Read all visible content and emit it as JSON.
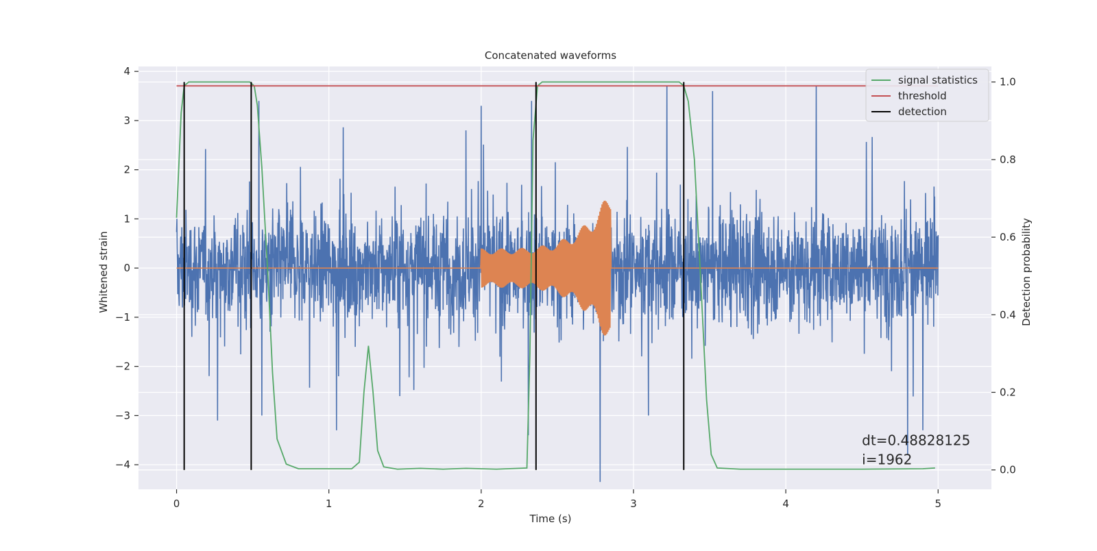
{
  "chart_data": {
    "type": "line",
    "title": "Concatenated waveforms",
    "xlabel": "Time (s)",
    "ylabel": "Whitened strain",
    "ylabel_right": "Detection probability",
    "xlim": [
      -0.25,
      5.35
    ],
    "ylim": [
      -4.5,
      4.1
    ],
    "ylim_right": [
      -0.05,
      1.04
    ],
    "xticks": [
      0,
      1,
      2,
      3,
      4,
      5
    ],
    "yticks": [
      -4,
      -3,
      -2,
      -1,
      0,
      1,
      2,
      3,
      4
    ],
    "yticks_right": [
      0.0,
      0.2,
      0.4,
      0.6,
      0.8,
      1.0
    ],
    "grid": true,
    "legend_position": "top-right",
    "colors": {
      "background": "#eaeaf2",
      "grid": "#ffffff",
      "strain": "#4c72b0",
      "waveform": "#dd8452",
      "signal_statistics": "#55a868",
      "threshold": "#c44e52",
      "detection": "#000000",
      "text": "#262626"
    },
    "strain": {
      "x_range": [
        0,
        5
      ],
      "typical_amplitude": 1.1,
      "peaks": [
        {
          "x": 0.54,
          "y": 3.4
        },
        {
          "x": 0.56,
          "y": -3.0
        },
        {
          "x": 1.05,
          "y": -3.3
        },
        {
          "x": 1.9,
          "y": 2.8
        },
        {
          "x": 2.0,
          "y": 3.3
        },
        {
          "x": 2.31,
          "y": -3.4
        },
        {
          "x": 2.33,
          "y": 3.4
        },
        {
          "x": 2.78,
          "y": -4.35
        },
        {
          "x": 3.22,
          "y": 3.7
        },
        {
          "x": 3.52,
          "y": 3.6
        },
        {
          "x": 4.2,
          "y": 3.7
        },
        {
          "x": 4.8,
          "y": -3.8
        },
        {
          "x": 4.9,
          "y": -3.3
        },
        {
          "x": 0.27,
          "y": -3.1
        }
      ]
    },
    "waveform": {
      "start": 2.0,
      "end": 2.85,
      "start_amplitude": 0.4,
      "peak_amplitude": 1.6,
      "elsewhere": 0
    },
    "series": [
      {
        "name": "signal statistics",
        "x": [
          0,
          0.03,
          0.05,
          0.08,
          0.48,
          0.51,
          0.53,
          0.56,
          0.6,
          0.63,
          0.66,
          0.72,
          0.8,
          1.15,
          1.2,
          1.23,
          1.26,
          1.29,
          1.32,
          1.36,
          1.45,
          1.6,
          1.75,
          1.9,
          2.1,
          2.3,
          2.32,
          2.34,
          2.37,
          2.4,
          3.3,
          3.33,
          3.36,
          3.4,
          3.44,
          3.48,
          3.51,
          3.55,
          3.7,
          4.5,
          4.9,
          4.98
        ],
        "y": [
          0.65,
          0.92,
          0.99,
          1.0,
          1.0,
          0.99,
          0.94,
          0.78,
          0.5,
          0.25,
          0.08,
          0.015,
          0.003,
          0.003,
          0.02,
          0.2,
          0.32,
          0.2,
          0.05,
          0.008,
          0.002,
          0.004,
          0.002,
          0.004,
          0.002,
          0.005,
          0.3,
          0.85,
          0.99,
          1.0,
          1.0,
          0.99,
          0.95,
          0.8,
          0.5,
          0.18,
          0.04,
          0.005,
          0.002,
          0.002,
          0.003,
          0.005
        ]
      },
      {
        "name": "threshold",
        "x": [
          0,
          5
        ],
        "y": [
          0.99,
          0.99
        ]
      },
      {
        "name": "detection",
        "x": [
          0.05,
          0.49,
          2.36,
          3.33
        ],
        "y_range": [
          0,
          1
        ]
      }
    ],
    "annotation": {
      "x": 4.5,
      "y": -3.6,
      "text": "dt=0.48828125\n i=1962"
    }
  }
}
